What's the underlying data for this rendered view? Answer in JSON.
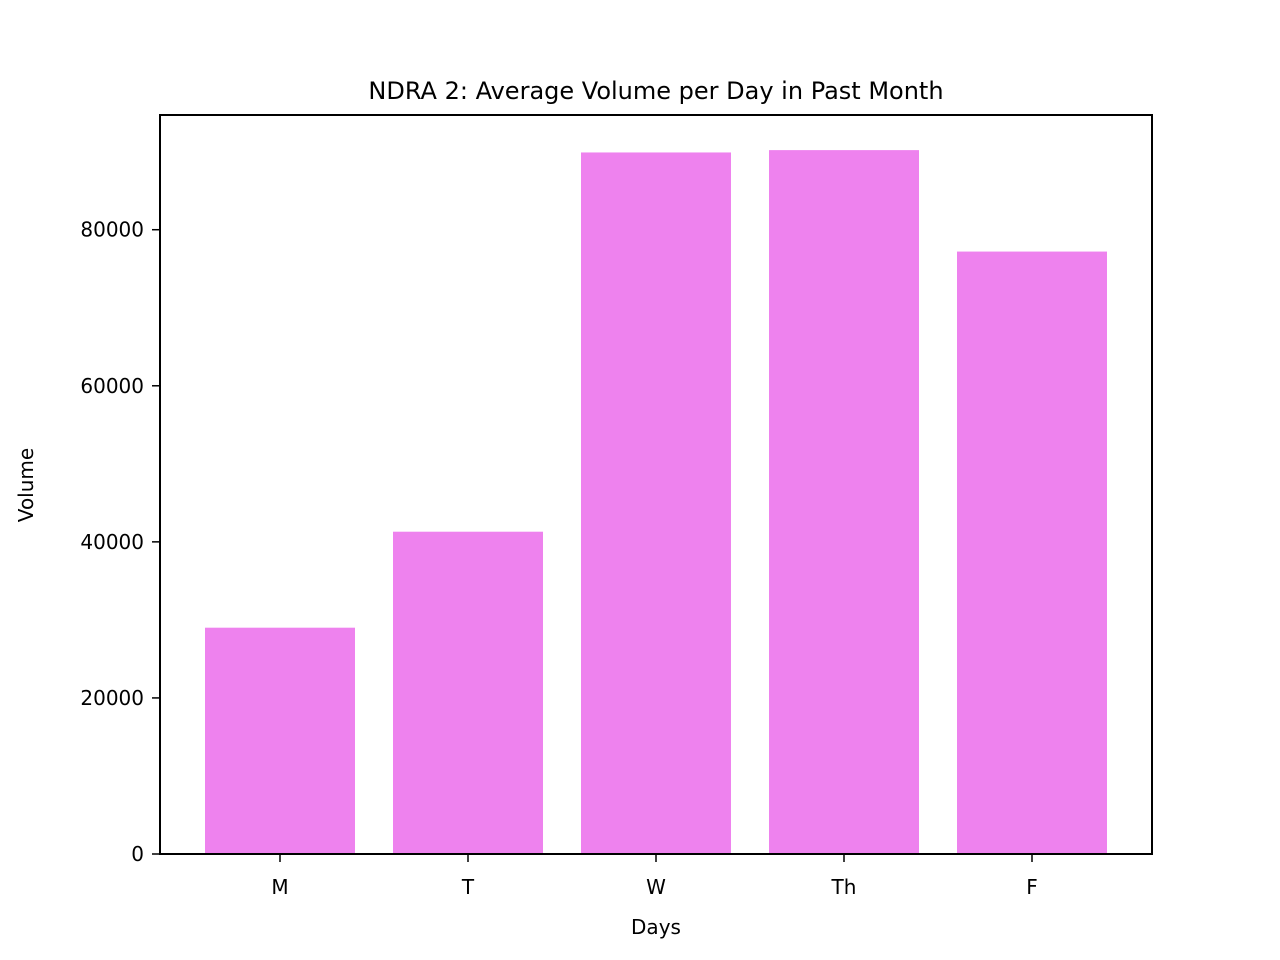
{
  "chart_data": {
    "type": "bar",
    "title": "NDRA 2: Average Volume per Day in Past Month",
    "xlabel": "Days",
    "ylabel": "Volume",
    "categories": [
      "M",
      "T",
      "W",
      "Th",
      "F"
    ],
    "values": [
      29000,
      41300,
      89900,
      90200,
      77200
    ],
    "ylim": [
      0,
      94700
    ],
    "yticks": [
      0,
      20000,
      40000,
      60000,
      80000
    ],
    "bar_color": "#ee82ee",
    "grid": false,
    "legend": "none"
  }
}
